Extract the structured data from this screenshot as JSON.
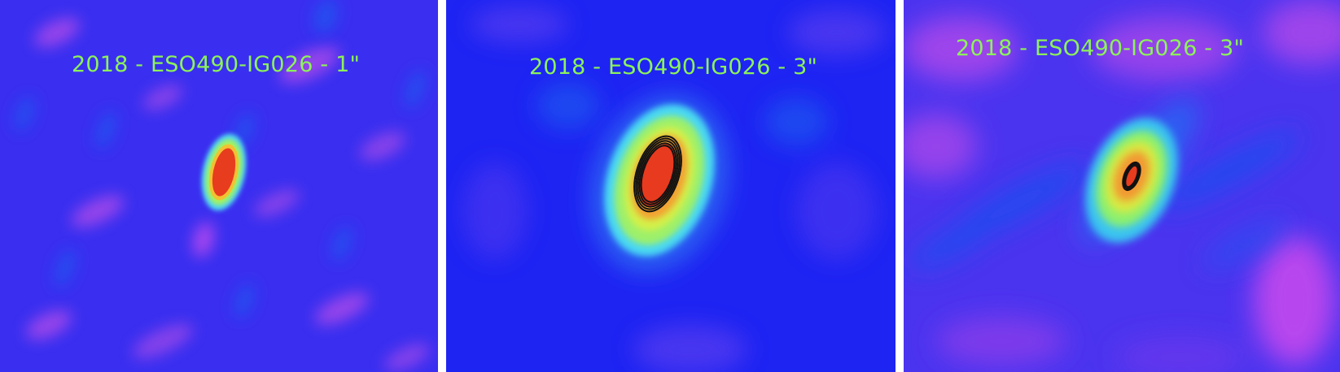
{
  "panels": [
    {
      "label": "2018 - ESO490-IG026 - 1\""
    },
    {
      "label": "2018 - ESO490-IG026 - 3\""
    },
    {
      "label": "2018 - ESO490-IG026 - 3\""
    }
  ]
}
